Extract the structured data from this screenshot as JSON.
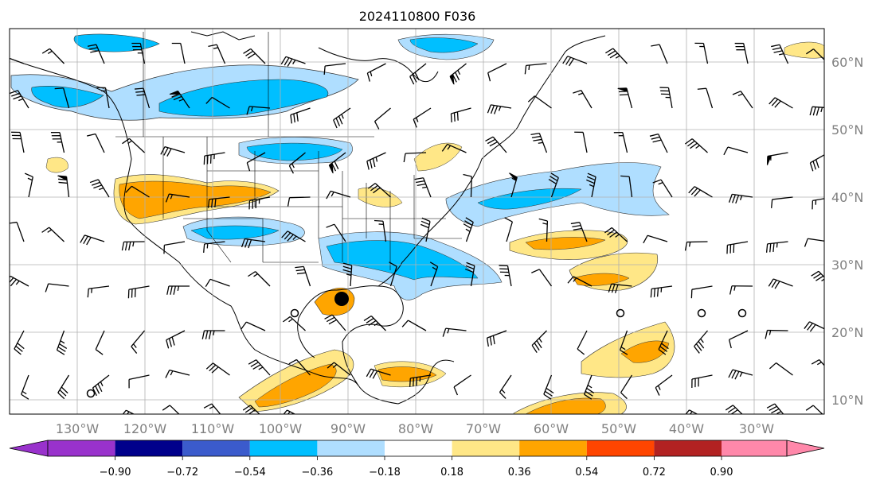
{
  "title": "2024110800 F036",
  "map": {
    "lon_labels": [
      "130°W",
      "120°W",
      "110°W",
      "100°W",
      "90°W",
      "80°W",
      "70°W",
      "60°W",
      "50°W",
      "40°W",
      "30°W"
    ],
    "lat_labels": [
      "60°N",
      "50°N",
      "40°N",
      "30°N",
      "20°N",
      "10°N"
    ],
    "label_color": "#808080",
    "gridline_color": "#b0b0b0",
    "marker": {
      "lon": -90.0,
      "lat": 25.0,
      "color": "#000000"
    }
  },
  "colorbar": {
    "ticks": [
      "−0.90",
      "−0.72",
      "−0.54",
      "−0.36",
      "−0.18",
      "0.18",
      "0.36",
      "0.54",
      "0.72",
      "0.90"
    ],
    "extend": "both",
    "colors": [
      "#9932cc",
      "#00008b",
      "#3b5bcc",
      "#00bfff",
      "#afdeff",
      "#ffffff",
      "#ffe787",
      "#ffa500",
      "#ff4500",
      "#b22222",
      "#ff88aa"
    ]
  },
  "legend": {
    "fill_colors": {
      "deep_blue": "#00bfff",
      "light_blue": "#afdeff",
      "yellow": "#ffe787",
      "orange": "#ffa500",
      "red": "#ff4500"
    }
  }
}
